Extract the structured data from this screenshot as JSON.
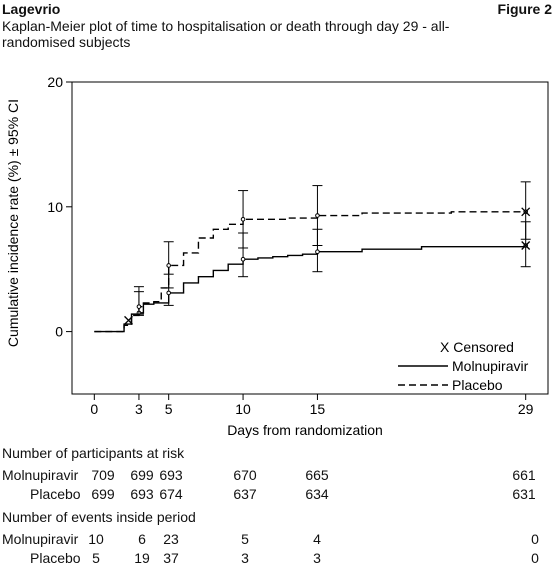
{
  "header": {
    "product": "Lagevrio",
    "figure": "Figure 2",
    "title": "Kaplan-Meier plot of time to hospitalisation or death through day 29 - all-randomised subjects"
  },
  "chart_data": {
    "type": "line",
    "title": "Kaplan-Meier plot of time to hospitalisation or death through day 29 - all-randomised subjects",
    "xlabel": "Days from randomization",
    "ylabel": "Cumulative incidence rate (%) ± 95% CI",
    "xticks": [
      0,
      3,
      5,
      10,
      15,
      29
    ],
    "yticks": [
      0,
      10,
      20
    ],
    "xlim": [
      -1.5,
      30.5
    ],
    "ylim": [
      -5,
      20
    ],
    "grid": false,
    "legend": {
      "placement": "bottom-right",
      "censored_label": "X Censored",
      "entries": [
        "Molnupiravir",
        "Placebo"
      ]
    },
    "series": [
      {
        "name": "Molnupiravir",
        "style": "solid",
        "color": "#000000",
        "steps": [
          [
            0,
            0
          ],
          [
            1.5,
            0
          ],
          [
            2,
            0.6
          ],
          [
            2.5,
            1.4
          ],
          [
            3,
            1.5
          ],
          [
            3.3,
            2.2
          ],
          [
            4,
            2.3
          ],
          [
            5,
            3.1
          ],
          [
            6,
            3.9
          ],
          [
            7,
            4.4
          ],
          [
            8,
            4.9
          ],
          [
            9,
            5.4
          ],
          [
            10,
            5.8
          ],
          [
            11,
            5.9
          ],
          [
            12,
            6.0
          ],
          [
            13,
            6.1
          ],
          [
            14,
            6.2
          ],
          [
            15,
            6.4
          ],
          [
            18,
            6.6
          ],
          [
            22,
            6.8
          ],
          [
            29,
            6.9
          ]
        ],
        "ci": [
          {
            "x": 3,
            "lo": 1.3,
            "hi": 3.2
          },
          {
            "x": 5,
            "lo": 2.1,
            "hi": 4.6
          },
          {
            "x": 10,
            "lo": 4.4,
            "hi": 7.9
          },
          {
            "x": 15,
            "lo": 4.8,
            "hi": 8.2
          },
          {
            "x": 29,
            "lo": 5.2,
            "hi": 8.8
          }
        ],
        "censored": [
          {
            "x": 29,
            "y": 6.9
          }
        ]
      },
      {
        "name": "Placebo",
        "style": "dashed",
        "color": "#000000",
        "steps": [
          [
            0,
            0
          ],
          [
            1.5,
            0
          ],
          [
            2,
            0.5
          ],
          [
            2.5,
            1.3
          ],
          [
            3,
            2.0
          ],
          [
            3.3,
            2.3
          ],
          [
            4,
            2.4
          ],
          [
            4.5,
            3.5
          ],
          [
            5,
            5.3
          ],
          [
            6,
            6.3
          ],
          [
            7,
            7.5
          ],
          [
            8,
            8.2
          ],
          [
            9,
            8.6
          ],
          [
            10,
            9.0
          ],
          [
            13,
            9.1
          ],
          [
            15,
            9.3
          ],
          [
            18,
            9.5
          ],
          [
            24,
            9.6
          ],
          [
            29,
            9.6
          ]
        ],
        "ci": [
          {
            "x": 3,
            "lo": 1.4,
            "hi": 3.6
          },
          {
            "x": 5,
            "lo": 3.5,
            "hi": 7.2
          },
          {
            "x": 10,
            "lo": 6.7,
            "hi": 11.3
          },
          {
            "x": 15,
            "lo": 6.9,
            "hi": 11.7
          },
          {
            "x": 29,
            "lo": 7.4,
            "hi": 12.0
          }
        ],
        "censored": [
          {
            "x": 2.3,
            "y": 0.9
          },
          {
            "x": 29,
            "y": 9.6
          }
        ]
      }
    ]
  },
  "risk_table": {
    "heading": "Number of participants at risk",
    "rows": [
      {
        "label": "Molnupiravir",
        "values": [
          "709",
          "699",
          "693",
          "670",
          "665",
          "661"
        ]
      },
      {
        "label": "Placebo",
        "values": [
          "699",
          "693",
          "674",
          "637",
          "634",
          "631"
        ]
      }
    ]
  },
  "events_table": {
    "heading": "Number of events inside period",
    "rows": [
      {
        "label": "Molnupiravir",
        "values": [
          "10",
          "6",
          "23",
          "5",
          "4",
          "0"
        ]
      },
      {
        "label": "Placebo",
        "values": [
          "5",
          "19",
          "37",
          "3",
          "3",
          "0"
        ]
      }
    ]
  }
}
